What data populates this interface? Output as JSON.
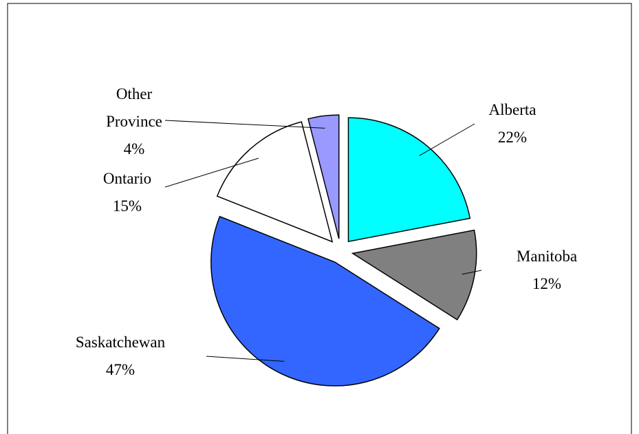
{
  "chart_data": {
    "type": "pie",
    "categories": [
      "Alberta",
      "Manitoba",
      "Saskatchewan",
      "Ontario",
      "Other Province"
    ],
    "values": [
      22,
      12,
      47,
      15,
      4
    ],
    "value_labels": [
      "22%",
      "12%",
      "47%",
      "15%",
      "4%"
    ],
    "colors": [
      "#00ffff",
      "#808080",
      "#3366ff",
      "#ffffff",
      "#9999ff"
    ]
  }
}
